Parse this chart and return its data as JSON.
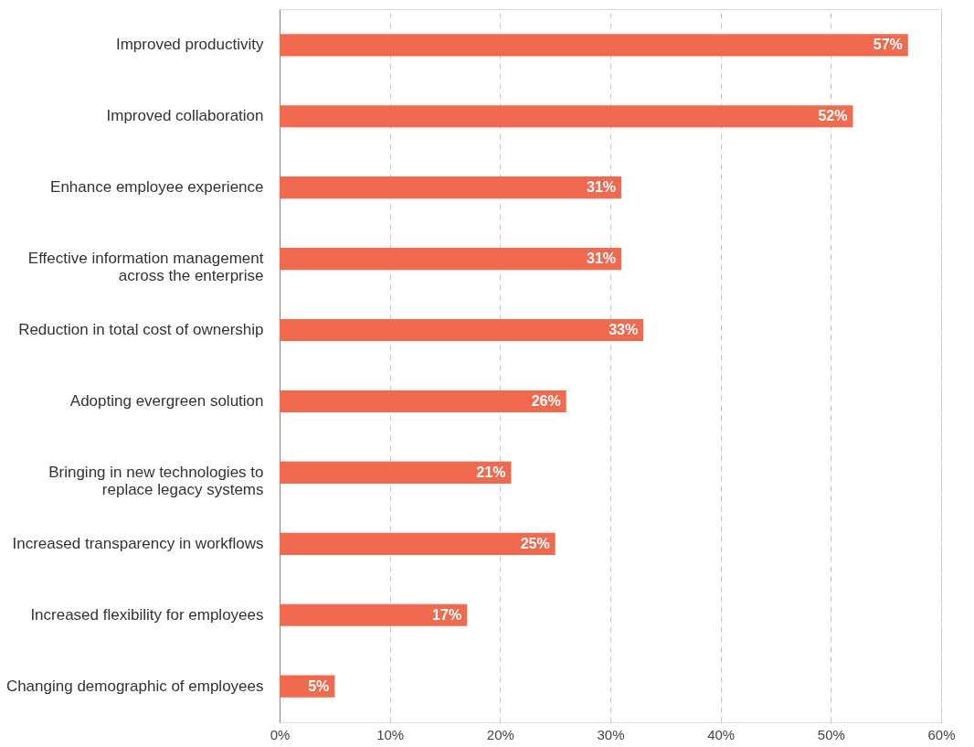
{
  "chart_data": {
    "type": "bar",
    "orientation": "horizontal",
    "categories": [
      "Improved productivity",
      "Improved collaboration",
      "Enhance employee experience",
      "Effective information management\nacross the enterprise",
      "Reduction in total cost of ownership",
      "Adopting evergreen solution",
      "Bringing in new technologies to\nreplace legacy systems",
      "Increased transparency in workflows",
      "Increased flexibility for employees",
      "Changing demographic of employees"
    ],
    "values": [
      57,
      52,
      31,
      31,
      33,
      26,
      21,
      25,
      17,
      5
    ],
    "value_labels": [
      "57%",
      "52%",
      "31%",
      "31%",
      "33%",
      "26%",
      "21%",
      "25%",
      "17%",
      "5%"
    ],
    "color": "#f06a50",
    "xlim": [
      0,
      60
    ],
    "xticks": [
      {
        "value": 0,
        "label": "0%"
      },
      {
        "value": 10,
        "label": "10%"
      },
      {
        "value": 20,
        "label": "20%"
      },
      {
        "value": 30,
        "label": "30%"
      },
      {
        "value": 40,
        "label": "40%"
      },
      {
        "value": 50,
        "label": "50%"
      },
      {
        "value": 60,
        "label": "60%"
      }
    ],
    "grid": "x"
  }
}
